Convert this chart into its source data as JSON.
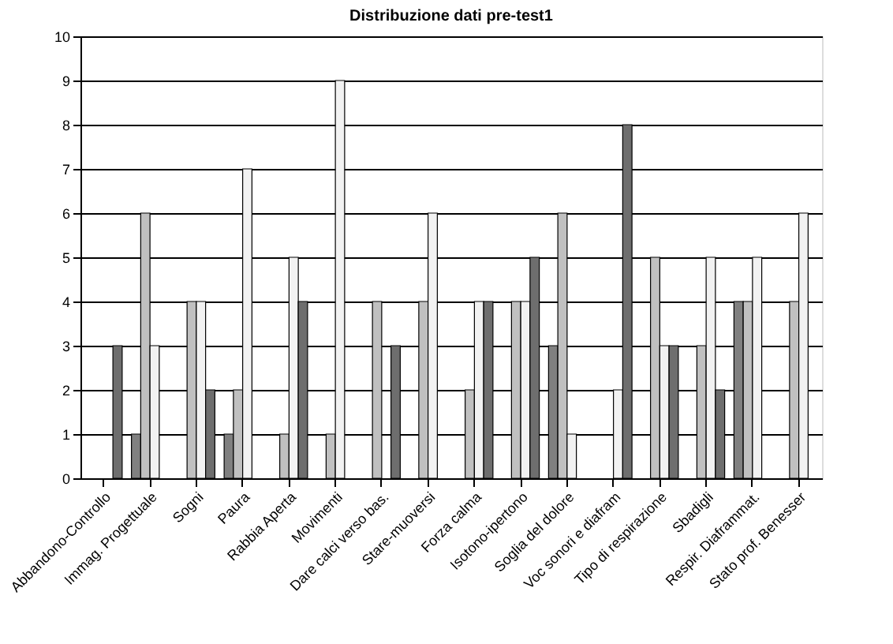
{
  "chart_data": {
    "type": "bar",
    "title": "Distribuzione dati pre-test1",
    "categories": [
      "Abbandono-Controllo",
      "Immag. Progettuale",
      "Sogni",
      "Paura",
      "Rabbia Aperta",
      "Movimenti",
      "Dare calci verso bas.",
      "Stare-muoversi",
      "Forza calma",
      "Isotono-ipertono",
      "Soglia del dolore",
      "Voc sonori e diafram",
      "Tipo di respirazione",
      "Sbadigli",
      "Respir. Diaframmat.",
      "Stato prof. Benesser"
    ],
    "series": [
      {
        "color": "#808080",
        "values": [
          0,
          1,
          0,
          1,
          0,
          0,
          0,
          0,
          0,
          0,
          3,
          0,
          0,
          0,
          4,
          0
        ]
      },
      {
        "color": "#c0c0c0",
        "values": [
          0,
          6,
          4,
          2,
          1,
          1,
          4,
          4,
          2,
          4,
          6,
          0,
          5,
          3,
          4,
          4
        ]
      },
      {
        "color": "#f2f2f2",
        "values": [
          0,
          3,
          4,
          7,
          5,
          9,
          0,
          6,
          4,
          4,
          1,
          2,
          3,
          5,
          5,
          6
        ]
      },
      {
        "color": "#6e6e6e",
        "values": [
          3,
          0,
          2,
          0,
          4,
          0,
          3,
          0,
          4,
          5,
          0,
          8,
          3,
          2,
          0,
          0
        ]
      }
    ],
    "ylim": [
      0,
      10
    ],
    "yticks": [
      0,
      1,
      2,
      3,
      4,
      5,
      6,
      7,
      8,
      9,
      10
    ],
    "grid": "y",
    "legend": false
  }
}
